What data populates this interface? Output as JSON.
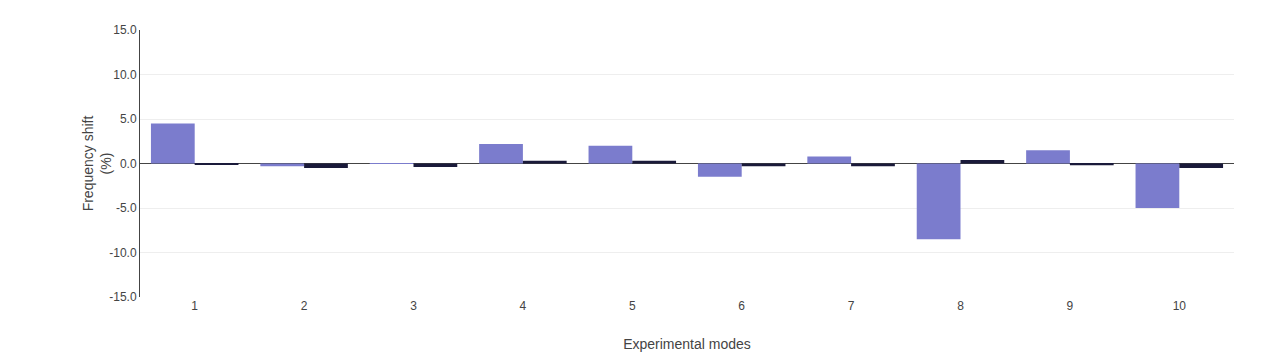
{
  "chart_data": {
    "type": "bar",
    "xlabel": "Experimental modes",
    "ylabel": [
      "Frequency shift",
      "(%)"
    ],
    "categories": [
      "1",
      "2",
      "3",
      "4",
      "5",
      "6",
      "7",
      "8",
      "9",
      "10"
    ],
    "series": [
      {
        "color": "#7b7ccd",
        "values": [
          4.5,
          -0.3,
          0.05,
          2.2,
          2.0,
          -1.5,
          0.8,
          -8.5,
          1.5,
          -5.0
        ]
      },
      {
        "color": "#1a1a3a",
        "values": [
          -0.1,
          -0.5,
          -0.4,
          0.3,
          0.3,
          -0.3,
          -0.3,
          0.4,
          -0.2,
          -0.5
        ]
      }
    ],
    "ylim": [
      -15.0,
      15.0
    ],
    "yticks": [
      {
        "value": -15.0,
        "label": "-15.0"
      },
      {
        "value": -10.0,
        "label": "-10.0"
      },
      {
        "value": -5.0,
        "label": "-5.0"
      },
      {
        "value": 0.0,
        "label": "0.0"
      },
      {
        "value": 5.0,
        "label": "5.0"
      },
      {
        "value": 10.0,
        "label": "10.0"
      },
      {
        "value": 15.0,
        "label": "15.0"
      }
    ],
    "grid": true
  }
}
